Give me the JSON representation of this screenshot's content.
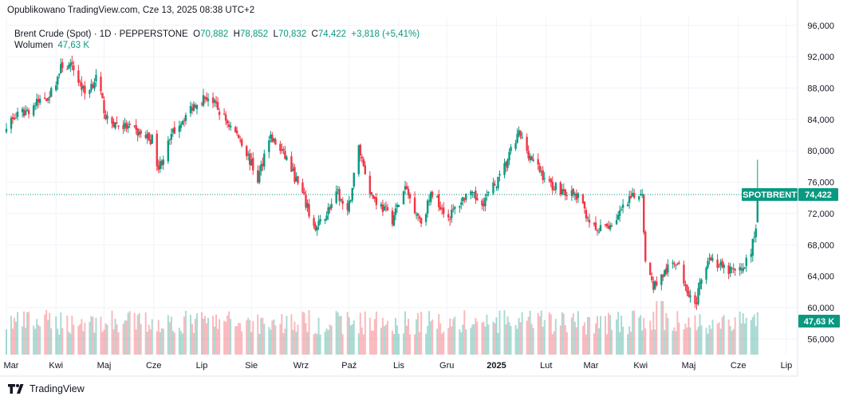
{
  "header": {
    "published": "Opublikowano TradingView.com, Cze 13, 2025 08:38 UTC+2"
  },
  "legend": {
    "symbol": "Brent Crude (Spot) · 1D · PEPPERSTONE",
    "o_label": "O",
    "o_value": "70,882",
    "h_label": "H",
    "h_value": "78,852",
    "l_label": "L",
    "l_value": "70,832",
    "c_label": "C",
    "c_value": "74,422",
    "change": "+3,818 (+5,41%)",
    "volume_label": "Wolumen",
    "volume_value": "47,63 K"
  },
  "footer": {
    "brand": "TradingView"
  },
  "colors": {
    "up": "#089981",
    "down": "#f23645",
    "grid": "#f0f3fa",
    "axis_text": "#131722"
  },
  "chart_data": {
    "type": "candlestick",
    "symbol_label": "SPOTBRENT",
    "last_price": 74.422,
    "last_price_label": "74,422",
    "volume_label": "47,63 K",
    "ylim": [
      54.0,
      97.0
    ],
    "y_ticks": [
      56,
      60,
      64,
      68,
      72,
      76,
      80,
      84,
      88,
      92,
      96
    ],
    "y_tick_labels": [
      "56,000",
      "60,000",
      "64,000",
      "68,000",
      "72,000",
      "76,000",
      "80,000",
      "84,000",
      "88,000",
      "92,000",
      "96,000"
    ],
    "x_labels": [
      "Mar",
      "Kwi",
      "Maj",
      "Cze",
      "Lip",
      "Sie",
      "Wrz",
      "Paź",
      "Lis",
      "Gru",
      "2025",
      "Lut",
      "Mar",
      "Kwi",
      "Maj",
      "Cze",
      "Lip"
    ],
    "x_label_dates": [
      "2024-03-01",
      "2024-04-01",
      "2024-05-01",
      "2024-06-01",
      "2024-07-01",
      "2024-08-01",
      "2024-09-01",
      "2024-10-01",
      "2024-11-01",
      "2024-12-01",
      "2025-01-01",
      "2025-02-01",
      "2025-03-01",
      "2025-04-01",
      "2025-05-01",
      "2025-06-01",
      "2025-07-01"
    ],
    "x_range": [
      "2024-03-01",
      "2025-07-08"
    ],
    "grid": true,
    "closes": [
      {
        "date": "2024-03-01",
        "close": 83.5
      },
      {
        "date": "2024-03-15",
        "close": 85.3
      },
      {
        "date": "2024-03-29",
        "close": 87.4
      },
      {
        "date": "2024-04-05",
        "close": 91.0
      },
      {
        "date": "2024-04-12",
        "close": 90.4
      },
      {
        "date": "2024-04-19",
        "close": 87.3
      },
      {
        "date": "2024-04-26",
        "close": 89.3
      },
      {
        "date": "2024-05-03",
        "close": 83.8
      },
      {
        "date": "2024-05-15",
        "close": 83.0
      },
      {
        "date": "2024-05-31",
        "close": 81.4
      },
      {
        "date": "2024-06-04",
        "close": 77.8
      },
      {
        "date": "2024-06-14",
        "close": 82.7
      },
      {
        "date": "2024-06-28",
        "close": 86.4
      },
      {
        "date": "2024-07-05",
        "close": 86.9
      },
      {
        "date": "2024-07-12",
        "close": 85.0
      },
      {
        "date": "2024-07-26",
        "close": 81.2
      },
      {
        "date": "2024-08-05",
        "close": 76.3
      },
      {
        "date": "2024-08-12",
        "close": 82.0
      },
      {
        "date": "2024-08-23",
        "close": 79.0
      },
      {
        "date": "2024-09-03",
        "close": 73.8
      },
      {
        "date": "2024-09-10",
        "close": 69.8
      },
      {
        "date": "2024-09-24",
        "close": 74.5
      },
      {
        "date": "2024-09-30",
        "close": 71.8
      },
      {
        "date": "2024-10-07",
        "close": 80.5
      },
      {
        "date": "2024-10-15",
        "close": 74.3
      },
      {
        "date": "2024-10-28",
        "close": 71.3
      },
      {
        "date": "2024-11-05",
        "close": 75.2
      },
      {
        "date": "2024-11-15",
        "close": 71.0
      },
      {
        "date": "2024-11-22",
        "close": 74.7
      },
      {
        "date": "2024-12-02",
        "close": 71.5
      },
      {
        "date": "2024-12-13",
        "close": 74.4
      },
      {
        "date": "2024-12-24",
        "close": 73.6
      },
      {
        "date": "2025-01-03",
        "close": 76.5
      },
      {
        "date": "2025-01-15",
        "close": 82.2
      },
      {
        "date": "2025-01-24",
        "close": 78.5
      },
      {
        "date": "2025-02-03",
        "close": 75.8
      },
      {
        "date": "2025-02-14",
        "close": 74.7
      },
      {
        "date": "2025-02-21",
        "close": 74.0
      },
      {
        "date": "2025-03-04",
        "close": 69.6
      },
      {
        "date": "2025-03-14",
        "close": 70.7
      },
      {
        "date": "2025-03-26",
        "close": 73.8
      },
      {
        "date": "2025-04-02",
        "close": 74.9
      },
      {
        "date": "2025-04-04",
        "close": 65.6
      },
      {
        "date": "2025-04-09",
        "close": 62.8
      },
      {
        "date": "2025-04-23",
        "close": 66.0
      },
      {
        "date": "2025-05-05",
        "close": 60.2
      },
      {
        "date": "2025-05-13",
        "close": 66.6
      },
      {
        "date": "2025-05-23",
        "close": 64.8
      },
      {
        "date": "2025-06-02",
        "close": 64.6
      },
      {
        "date": "2025-06-09",
        "close": 67.0
      },
      {
        "date": "2025-06-12",
        "close": 70.6
      },
      {
        "date": "2025-06-13",
        "close": 74.4
      }
    ]
  }
}
